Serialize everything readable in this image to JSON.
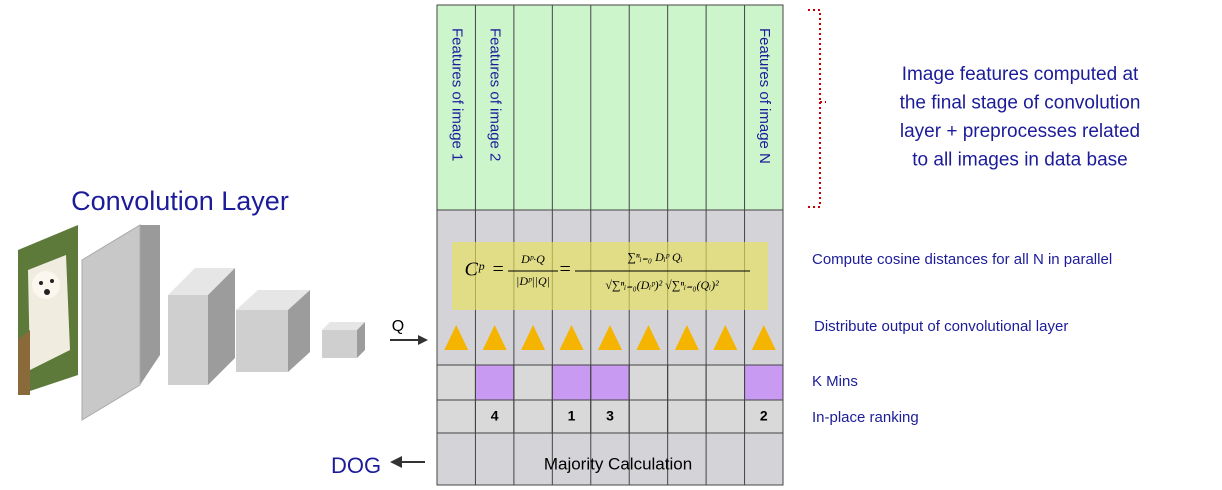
{
  "title": "Convolution Layer",
  "query_label": "Q",
  "output_label": "DOG",
  "feature_labels": [
    "Features of image 1",
    "Features of image 2",
    null,
    null,
    null,
    null,
    null,
    null,
    "Features of image N"
  ],
  "k_mins": [
    false,
    true,
    false,
    true,
    true,
    false,
    false,
    false,
    true
  ],
  "ranks": [
    null,
    "4",
    null,
    "1",
    "3",
    null,
    null,
    null,
    "2"
  ],
  "majority_label": "Majority Calculation",
  "formula": {
    "lhs": "Cᵖ",
    "eq": "=",
    "num1": "Dᵖ·Q",
    "den1": "|Dᵖ||Q|",
    "num2": "∑ⁿᵢ₌₀ Dᵢᵖ Qᵢ",
    "den2": "√∑ⁿᵢ₌₀(Dᵢᵖ)² √∑ⁿᵢ₌₀(Qᵢ)²"
  },
  "annotation": [
    "Image features computed at",
    "the final stage of convolution",
    "layer + preprocesses related",
    "to all images in data base"
  ],
  "row_labels": {
    "compute": "Compute cosine distances for all N  in parallel",
    "distribute": "Distribute output of convolutional layer",
    "kmins": "K Mins",
    "ranking": "In-place ranking"
  }
}
